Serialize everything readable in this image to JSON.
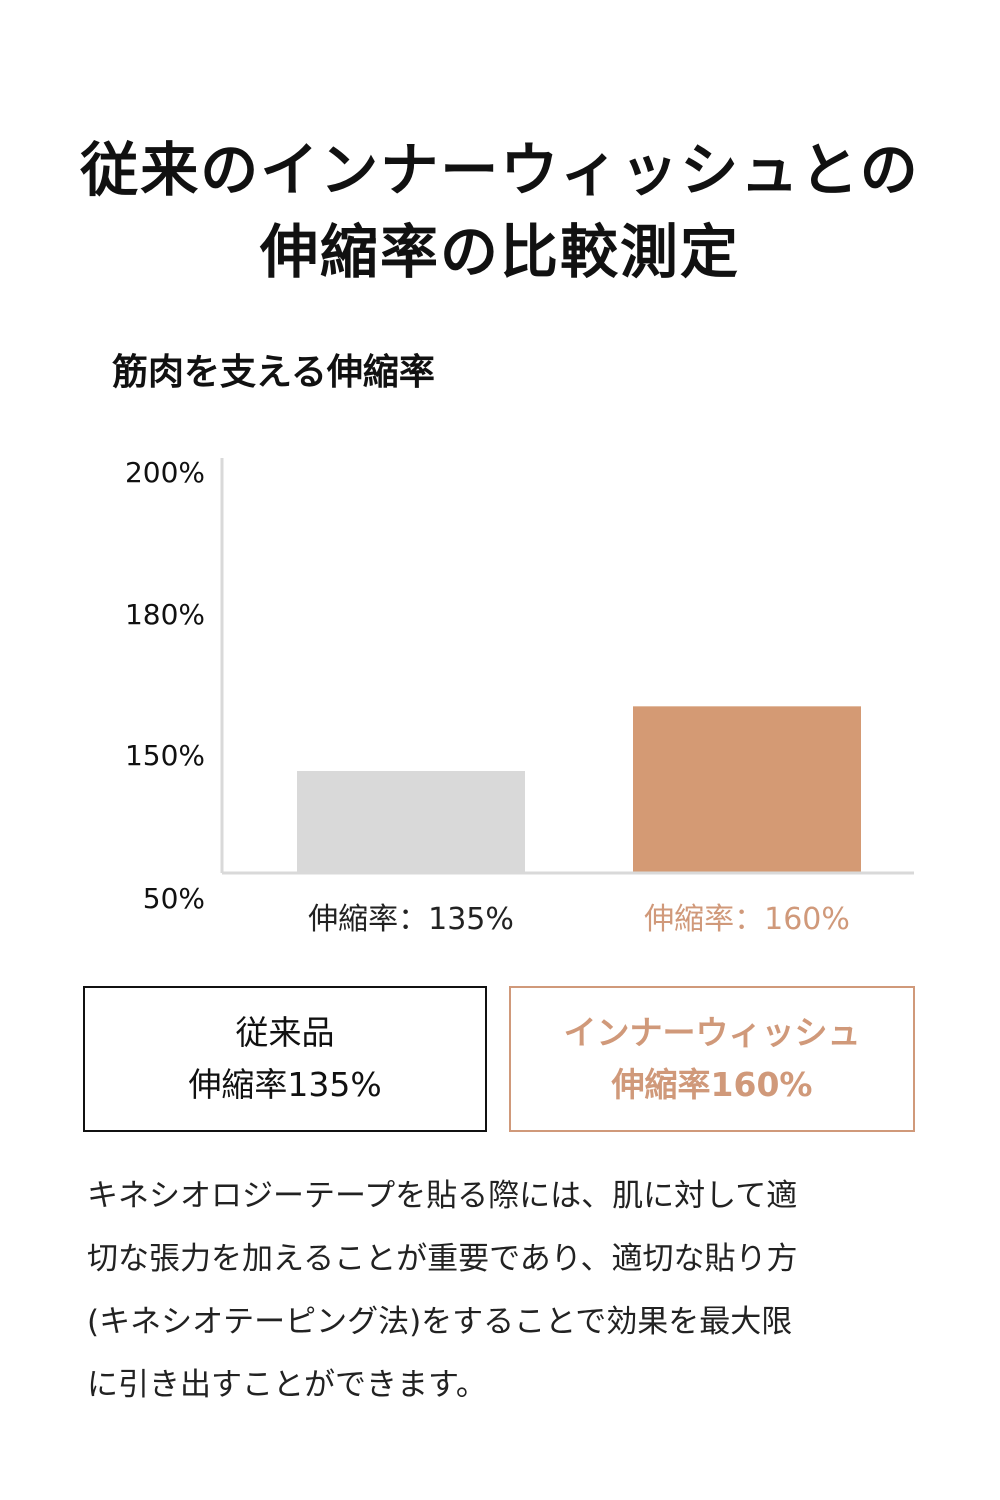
{
  "heading": {
    "line1": "従来のインナーウィッシュとの",
    "line2": "伸縮率の比較測定"
  },
  "chart_data": {
    "type": "bar",
    "title": "筋肉を支える伸縮率",
    "categories": [
      "伸縮率：135%",
      "伸縮率：160%"
    ],
    "values": [
      135,
      160
    ],
    "value_unit": "%",
    "yticks": [
      "200%",
      "180%",
      "150%",
      "50%"
    ],
    "ytick_values": [
      200,
      180,
      150,
      50
    ],
    "ylim": [
      50,
      200
    ],
    "axis_note": "non-linear y-axis scale",
    "grid": false,
    "legend": "none",
    "colors": [
      "#d9d9d9",
      "#d49a74"
    ],
    "category_label_colors": [
      "#222222",
      "#d0997a"
    ]
  },
  "legend": {
    "conventional": {
      "name": "従来品",
      "rate": "伸縮率135%"
    },
    "product": {
      "name": "インナーウィッシュ",
      "rate": "伸縮率160%"
    }
  },
  "description": {
    "lines": [
      "キネシオロジーテープを貼る際には、肌に対して適",
      "切な張力を加えることが重要であり、適切な貼り方",
      "(キネシオテーピング法)をすることで効果を最大限",
      "に引き出すことができます。"
    ]
  },
  "colors": {
    "accent": "#d0997a",
    "bar_conventional": "#d9d9d9",
    "bar_product": "#d49a74",
    "axis": "#d9d9d9",
    "text": "#111111"
  }
}
